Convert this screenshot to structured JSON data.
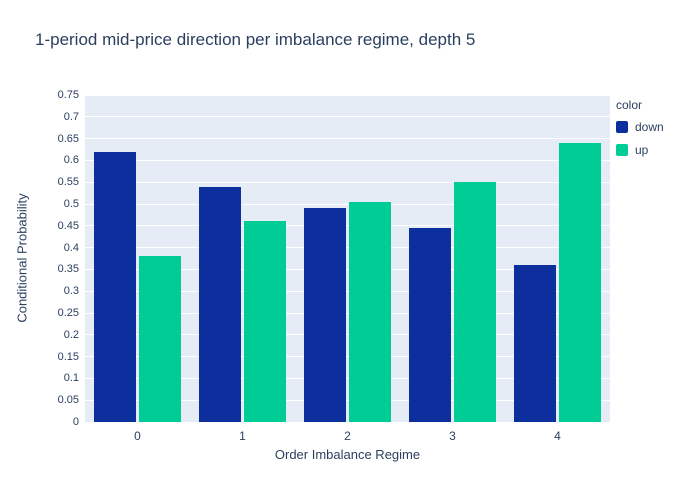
{
  "title": "1-period mid-price direction per imbalance regime, depth 5",
  "legend": {
    "title": "color",
    "items": [
      {
        "label": "down",
        "color": "#0d2f9e"
      },
      {
        "label": "up",
        "color": "#00cc96"
      }
    ]
  },
  "chart_data": {
    "type": "bar",
    "title": "1-period mid-price direction per imbalance regime, depth 5",
    "xlabel": "Order Imbalance Regime",
    "ylabel": "Conditional Probability",
    "categories": [
      "0",
      "1",
      "2",
      "3",
      "4"
    ],
    "series": [
      {
        "name": "down",
        "color": "#0d2f9e",
        "values": [
          0.62,
          0.54,
          0.49,
          0.445,
          0.36
        ]
      },
      {
        "name": "up",
        "color": "#00cc96",
        "values": [
          0.38,
          0.46,
          0.505,
          0.55,
          0.64
        ]
      }
    ],
    "ylim": [
      0,
      0.75
    ],
    "ytick_step": 0.05,
    "grid": true,
    "legend_position": "right",
    "plot_bg": "#e5ecf6",
    "grid_color": "#ffffff",
    "font_color": "#2a3f5f"
  }
}
